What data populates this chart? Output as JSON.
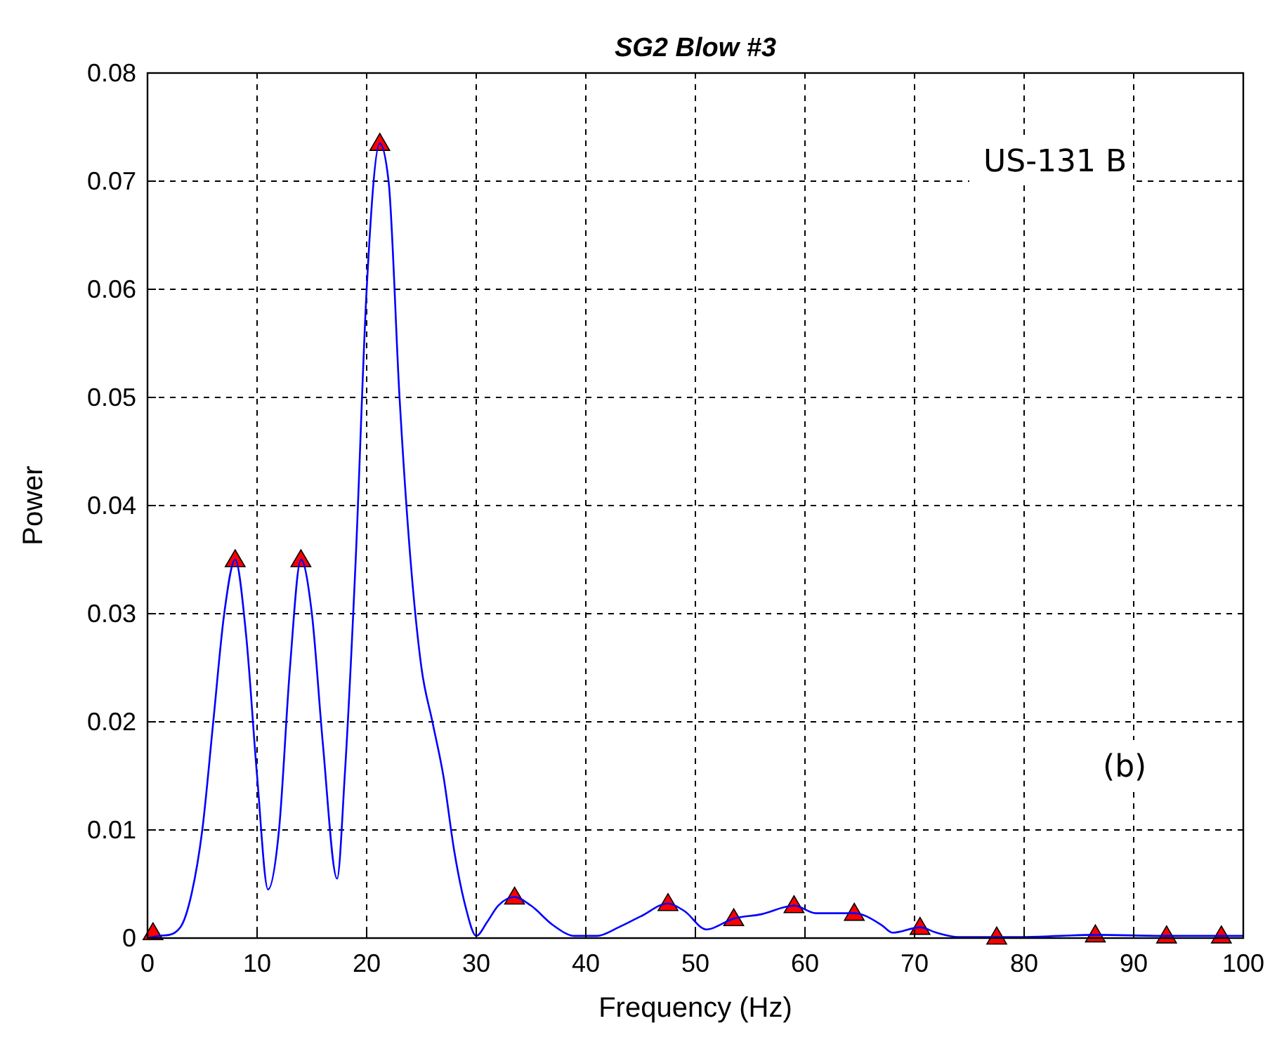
{
  "chart_data": {
    "type": "line",
    "title": "SG2 Blow #3",
    "xlabel": "Frequency (Hz)",
    "ylabel": "Power",
    "xlim": [
      0,
      100
    ],
    "ylim": [
      0,
      0.08
    ],
    "xticks": [
      0,
      10,
      20,
      30,
      40,
      50,
      60,
      70,
      80,
      90,
      100
    ],
    "yticks": [
      0,
      0.01,
      0.02,
      0.03,
      0.04,
      0.05,
      0.06,
      0.07,
      0.08
    ],
    "grid": true,
    "annotations": [
      "US-131 B",
      "(b)"
    ],
    "series": [
      {
        "color": "#0000ff",
        "marker": "none",
        "line_style": "solid",
        "x": [
          0,
          1,
          2,
          3,
          4,
          5,
          6,
          7,
          8,
          9,
          10,
          11,
          12,
          13,
          14,
          15,
          16,
          17.3,
          18,
          19,
          20,
          21.2,
          22,
          23,
          24,
          25,
          26,
          27,
          28,
          29,
          30,
          31,
          32,
          33.5,
          35,
          37,
          39,
          41,
          43,
          45,
          47.5,
          49,
          51,
          53.5,
          56,
          59,
          61,
          64.5,
          67,
          68,
          70.5,
          72,
          74,
          80,
          86.5,
          93,
          100
        ],
        "values": [
          0,
          0.0002,
          0.0003,
          0.001,
          0.004,
          0.01,
          0.02,
          0.03,
          0.035,
          0.028,
          0.015,
          0.0045,
          0.01,
          0.025,
          0.035,
          0.03,
          0.018,
          0.0055,
          0.015,
          0.035,
          0.06,
          0.0735,
          0.07,
          0.05,
          0.035,
          0.025,
          0.02,
          0.015,
          0.008,
          0.003,
          0.0002,
          0.0015,
          0.003,
          0.0038,
          0.003,
          0.0012,
          0.0002,
          0.0002,
          0.001,
          0.002,
          0.0032,
          0.0025,
          0.0008,
          0.0018,
          0.0022,
          0.003,
          0.0023,
          0.0023,
          0.0012,
          0.0005,
          0.001,
          0.0005,
          0.0001,
          0.0001,
          0.0003,
          0.0002,
          0.0002
        ]
      },
      {
        "type": "scatter",
        "color": "#ff0000",
        "marker": "triangle",
        "x": [
          0.5,
          8,
          14,
          21.2,
          33.5,
          47.5,
          53.5,
          59,
          64.5,
          70.5,
          77.5,
          86.5,
          93,
          98
        ],
        "values": [
          0.0005,
          0.035,
          0.035,
          0.0735,
          0.0038,
          0.0032,
          0.0018,
          0.003,
          0.0023,
          0.001,
          0.0001,
          0.0003,
          0.0002,
          0.0002
        ]
      }
    ]
  }
}
